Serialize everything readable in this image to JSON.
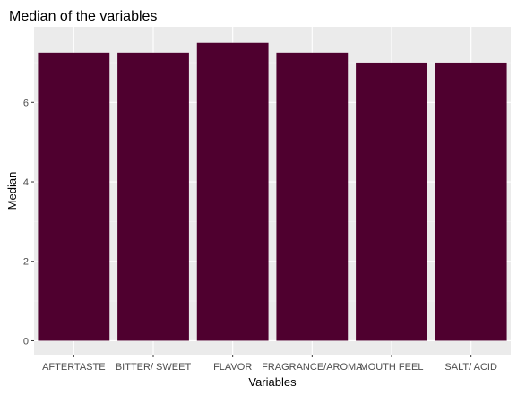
{
  "chart_data": {
    "type": "bar",
    "title": "Median of the variables",
    "xlabel": "Variables",
    "ylabel": "Median",
    "categories": [
      "AFTERTASTE",
      "BITTER/ SWEET",
      "FLAVOR",
      "FRAGRANCE/AROMA",
      "MOUTH FEEL",
      "SALT/ ACID"
    ],
    "values": [
      7.25,
      7.25,
      7.5,
      7.25,
      7.0,
      7.0
    ],
    "ylim": [
      -0.35,
      7.9
    ],
    "yticks": [
      0,
      2,
      4,
      6
    ],
    "ytick_labels": [
      "0",
      "2",
      "4",
      "6"
    ],
    "grid": true,
    "colors": {
      "bar": "#4f002f",
      "panel_background": "#ebebeb",
      "grid_major": "#ffffff",
      "grid_minor": "#f5f5f5"
    }
  }
}
